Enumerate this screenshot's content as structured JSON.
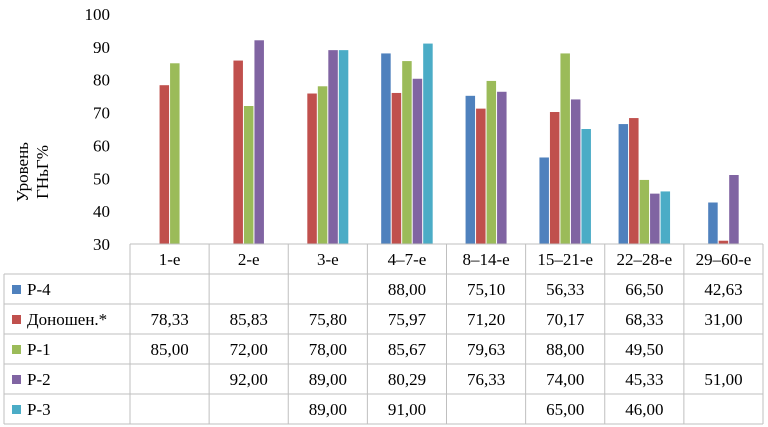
{
  "chart_data": {
    "type": "bar",
    "ylabel": "Уровень\nГНьГ%",
    "ylim": [
      30,
      100
    ],
    "yticks": [
      "30",
      "40",
      "50",
      "60",
      "70",
      "80",
      "90",
      "100"
    ],
    "grid": false,
    "legend_placement": "table-left",
    "categories": [
      "1-е",
      "2-е",
      "3-е",
      "4–7-е",
      "8–14-е",
      "15–21-е",
      "22–28-е",
      "29–60-е"
    ],
    "series": [
      {
        "name": "Р-4",
        "color": "#4F81BD",
        "values": [
          null,
          null,
          null,
          88.0,
          75.1,
          56.33,
          66.5,
          42.63
        ],
        "labels": [
          "",
          "",
          "",
          "88,00",
          "75,10",
          "56,33",
          "66,50",
          "42,63"
        ]
      },
      {
        "name": "Доношен.*",
        "color": "#C0504D",
        "values": [
          78.33,
          85.83,
          75.8,
          75.97,
          71.2,
          70.17,
          68.33,
          31.0
        ],
        "labels": [
          "78,33",
          "85,83",
          "75,80",
          "75,97",
          "71,20",
          "70,17",
          "68,33",
          "31,00"
        ]
      },
      {
        "name": "Р-1",
        "color": "#9BBB59",
        "values": [
          85.0,
          72.0,
          78.0,
          85.67,
          79.63,
          88.0,
          49.5,
          null
        ],
        "labels": [
          "85,00",
          "72,00",
          "78,00",
          "85,67",
          "79,63",
          "88,00",
          "49,50",
          ""
        ]
      },
      {
        "name": "Р-2",
        "color": "#8064A2",
        "values": [
          null,
          92.0,
          89.0,
          80.29,
          76.33,
          74.0,
          45.33,
          51.0
        ],
        "labels": [
          "",
          "92,00",
          "89,00",
          "80,29",
          "76,33",
          "74,00",
          "45,33",
          "51,00"
        ]
      },
      {
        "name": "Р-3",
        "color": "#4BACC6",
        "values": [
          null,
          null,
          89.0,
          91.0,
          null,
          65.0,
          46.0,
          null
        ],
        "labels": [
          "",
          "",
          "89,00",
          "91,00",
          "",
          "65,00",
          "46,00",
          ""
        ]
      }
    ]
  }
}
